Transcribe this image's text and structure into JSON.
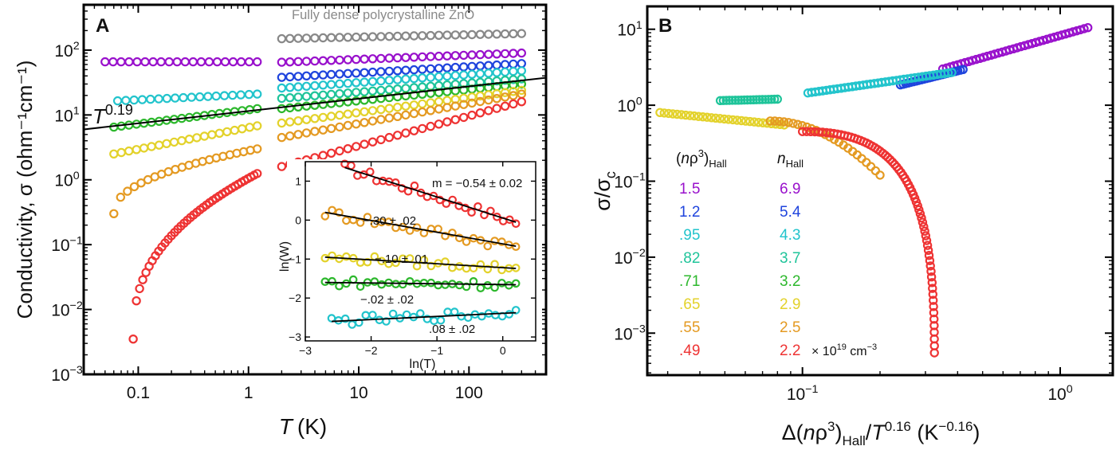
{
  "figure": {
    "panel_a_letter": "A",
    "panel_b_letter": "B"
  },
  "chart_data": [
    {
      "type": "scatter",
      "panel": "A",
      "xscale": "log",
      "yscale": "log",
      "xlim": [
        0.032,
        500
      ],
      "ylim": [
        0.001,
        500
      ],
      "xlabel_main": "T",
      "xlabel_unit": "(K)",
      "ylabel": "Conductivity, σ (ohm⁻¹cm⁻¹)",
      "xticks": [
        0.1,
        1,
        10,
        100
      ],
      "xtick_labels": [
        "0.1",
        "1",
        "10",
        "100"
      ],
      "yticks": [
        0.001,
        0.01,
        0.1,
        1,
        10,
        100
      ],
      "ytick_labels": [
        [
          "10",
          "−3"
        ],
        [
          "10",
          "−2"
        ],
        [
          "10",
          "−1"
        ],
        [
          "10",
          "0"
        ],
        [
          "10",
          "1"
        ],
        [
          "10",
          "2"
        ]
      ],
      "annotation_gray": "Fully dense polycrystalline ZnO",
      "fit_line": {
        "label_base": "T",
        "label_exp": "0.19",
        "exponent": 0.19,
        "x": [
          0.032,
          500
        ],
        "y_at_1": 11.5
      },
      "series": [
        {
          "name": "fully dense",
          "color": "#888888",
          "segments": [
            {
              "xmin": 2,
              "xmax": 300,
              "n": 30,
              "ymin": 150,
              "ymax": 180
            }
          ]
        },
        {
          "name": "1.5",
          "color": "#9911cc",
          "segments": [
            {
              "xmin": 0.05,
              "xmax": 1.2,
              "n": 20,
              "ymin": 66,
              "ymax": 66
            },
            {
              "xmin": 2,
              "xmax": 300,
              "n": 30,
              "ymin": 65,
              "ymax": 90
            }
          ]
        },
        {
          "name": "1.2",
          "color": "#1f44dd",
          "segments": [
            {
              "xmin": 2,
              "xmax": 300,
              "n": 30,
              "ymin": 38,
              "ymax": 62
            }
          ]
        },
        {
          "name": "0.95",
          "color": "#22c4cc",
          "segments": [
            {
              "xmin": 0.065,
              "xmax": 1.2,
              "n": 18,
              "ymin": 16.5,
              "ymax": 21
            },
            {
              "xmin": 2,
              "xmax": 300,
              "n": 30,
              "ymin": 26,
              "ymax": 48
            }
          ]
        },
        {
          "name": "0.82",
          "color": "#1fc49a",
          "segments": [
            {
              "xmin": 2,
              "xmax": 300,
              "n": 30,
              "ymin": 18,
              "ymax": 36
            }
          ]
        },
        {
          "name": "0.71",
          "color": "#2db82d",
          "segments": [
            {
              "xmin": 0.06,
              "xmax": 1.2,
              "n": 20,
              "ymin": 6.5,
              "ymax": 12.5
            },
            {
              "xmin": 2,
              "xmax": 300,
              "n": 30,
              "ymin": 12.5,
              "ymax": 30
            }
          ]
        },
        {
          "name": "0.65",
          "color": "#e3d22b",
          "segments": [
            {
              "xmin": 0.06,
              "xmax": 1.2,
              "n": 20,
              "ymin": 2.5,
              "ymax": 6.8
            },
            {
              "xmin": 2,
              "xmax": 300,
              "n": 30,
              "ymin": 7.5,
              "ymax": 24
            }
          ]
        },
        {
          "name": "0.55",
          "color": "#e49a22",
          "segments": [
            {
              "xmin": 0.06,
              "xmax": 1.2,
              "n": 22,
              "ymin": 0.3,
              "ymax": 3.0,
              "curve": 0.45
            },
            {
              "xmin": 2,
              "xmax": 300,
              "n": 30,
              "ymin": 4.5,
              "ymax": 21
            }
          ]
        },
        {
          "name": "0.49",
          "color": "#ee3333",
          "segments": [
            {
              "xmin": 0.09,
              "xmax": 1.2,
              "n": 40,
              "ymin": 0.0035,
              "ymax": 1.25,
              "curve": 0.4
            },
            {
              "xmin": 2,
              "xmax": 300,
              "n": 30,
              "ymin": 1.6,
              "ymax": 16
            }
          ]
        }
      ],
      "inset": {
        "type": "scatter",
        "xlabel": "ln(T)",
        "ylabel": "ln(W)",
        "xlim": [
          -3,
          0.5
        ],
        "ylim": [
          -3.1,
          1.5
        ],
        "xticks": [
          -3,
          -2,
          -1,
          0
        ],
        "xtick_labels": [
          "−3",
          "−2",
          "−1",
          "0"
        ],
        "yticks": [
          -3,
          -2,
          -1,
          0,
          1
        ],
        "ytick_labels": [
          "−3",
          "−2",
          "−1",
          "0",
          "1"
        ],
        "series": [
          {
            "color": "#ee3333",
            "slope": -0.54,
            "x0": -2.4,
            "x1": 0.2,
            "y_at_x0": 1.35,
            "noise": 0.12,
            "label": "m = −0.54 ± 0.02"
          },
          {
            "color": "#e49a22",
            "slope": -0.3,
            "x0": -2.7,
            "x1": 0.2,
            "y_at_x0": 0.2,
            "noise": 0.13,
            "label": "−.30 ± .02"
          },
          {
            "color": "#e3d22b",
            "slope": -0.1,
            "x0": -2.7,
            "x1": 0.2,
            "y_at_x0": -0.95,
            "noise": 0.1,
            "label": "−.10 ± .01"
          },
          {
            "color": "#2db82d",
            "slope": -0.02,
            "x0": -2.7,
            "x1": 0.2,
            "y_at_x0": -1.6,
            "noise": 0.1,
            "label": "−.02 ± .02"
          },
          {
            "color": "#22c4cc",
            "slope": 0.08,
            "x0": -2.6,
            "x1": 0.2,
            "y_at_x0": -2.6,
            "noise": 0.12,
            "label": ".08 ± .02"
          }
        ]
      }
    },
    {
      "type": "scatter",
      "panel": "B",
      "xscale": "log",
      "yscale": "log",
      "xlim": [
        0.025,
        1.6
      ],
      "ylim": [
        0.00028,
        20
      ],
      "xlabel": "Δ(nρ³)Hall/T^0.16 (K^−0.16)",
      "ylabel": "σ/σc",
      "xticks": [
        0.1,
        1.0
      ],
      "xtick_labels": [
        [
          "10",
          "−1"
        ],
        [
          "10",
          "0"
        ]
      ],
      "yticks": [
        0.001,
        0.01,
        0.1,
        1,
        10
      ],
      "ytick_labels": [
        [
          "10",
          "−3"
        ],
        [
          "10",
          "−2"
        ],
        [
          "10",
          "−1"
        ],
        [
          "10",
          "0"
        ],
        [
          "10",
          "1"
        ]
      ],
      "series": [
        {
          "name": "1.5",
          "color": "#9911cc",
          "x": [
            0.35,
            1.28
          ],
          "y": [
            3.0,
            10.5
          ],
          "n": 40
        },
        {
          "name": "1.2",
          "color": "#1f44dd",
          "x": [
            0.24,
            0.42
          ],
          "y": [
            1.85,
            2.95
          ],
          "n": 25
        },
        {
          "name": "0.95",
          "color": "#22c4cc",
          "x": [
            0.105,
            0.38
          ],
          "y": [
            1.45,
            2.7
          ],
          "n": 40
        },
        {
          "name": "0.82",
          "color": "#1fc49a",
          "x": [
            0.048,
            0.08
          ],
          "y": [
            1.15,
            1.2
          ],
          "n": 20
        },
        {
          "name": "0.65",
          "color": "#e3d22b",
          "x": [
            0.028,
            0.085
          ],
          "y": [
            0.8,
            0.55
          ],
          "n": 30
        },
        {
          "name": "0.55",
          "color": "#e49a22",
          "x": [
            0.075,
            0.2
          ],
          "y": [
            0.62,
            0.12
          ],
          "n": 25
        },
        {
          "name": "0.49",
          "color": "#ee3333",
          "x": [
            0.1,
            0.325
          ],
          "y": [
            0.45,
            0.00055
          ],
          "n": 70
        }
      ],
      "legend": {
        "header_left_base": "(nρ",
        "header_left_sup": "3",
        "header_left_close": ")",
        "header_left_sub": "Hall",
        "header_right_base": "n",
        "header_right_sub": "Hall",
        "unit_text": "× 10",
        "unit_exp": "19",
        "unit_tail": " cm",
        "unit_tail_exp": "−3",
        "rows": [
          {
            "left": "1.5",
            "right": "6.9",
            "color": "#9911cc"
          },
          {
            "left": "1.2",
            "right": "5.4",
            "color": "#1f44dd"
          },
          {
            "left": ".95",
            "right": "4.3",
            "color": "#22c4cc"
          },
          {
            "left": ".82",
            "right": "3.7",
            "color": "#1fc49a"
          },
          {
            "left": ".71",
            "right": "3.2",
            "color": "#2db82d"
          },
          {
            "left": ".65",
            "right": "2.9",
            "color": "#e3d22b"
          },
          {
            "left": ".55",
            "right": "2.5",
            "color": "#e49a22"
          },
          {
            "left": ".49",
            "right": "2.2",
            "color": "#ee3333"
          }
        ]
      }
    }
  ]
}
